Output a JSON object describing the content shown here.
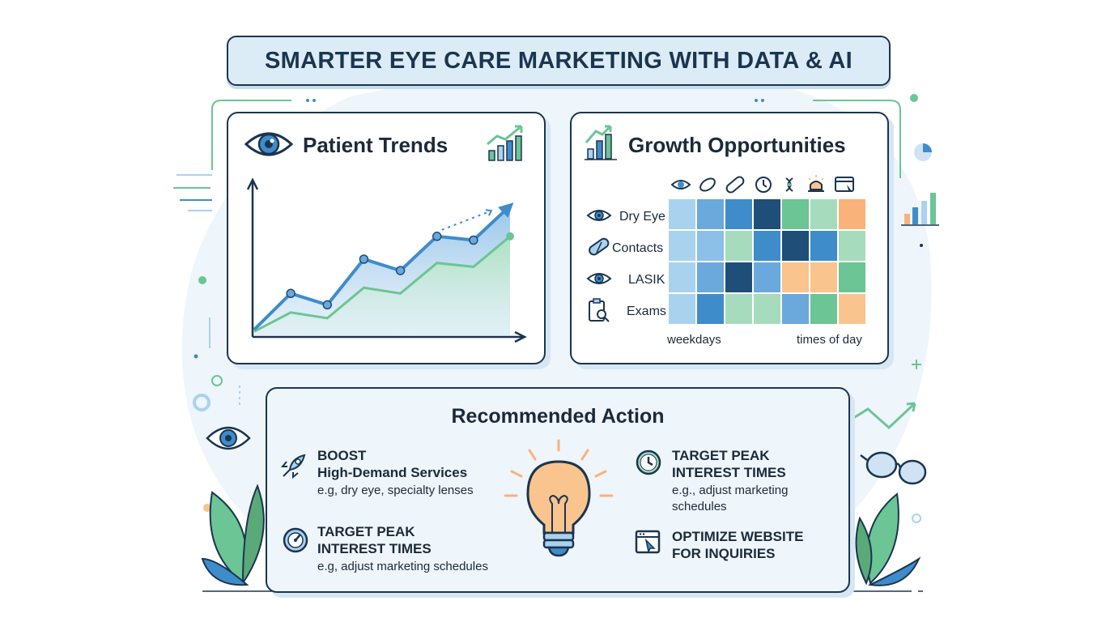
{
  "title": "SMARTER EYE CARE MARKETING WITH DATA & AI",
  "patient_trends": {
    "title": "Patient Trends",
    "icon": "eye-icon"
  },
  "growth": {
    "title": "Growth Opportunities",
    "column_icons": [
      "eye-icon",
      "contact-lens-icon",
      "bandage-icon",
      "clock-icon",
      "dna-icon",
      "lamp-icon",
      "browser-icon"
    ],
    "rows": [
      {
        "label": "Dry Eye",
        "icon": "eye-icon"
      },
      {
        "label": "Contacts",
        "icon": "contacts-icon"
      },
      {
        "label": "LASIK",
        "icon": "eye-icon"
      },
      {
        "label": "Exams",
        "icon": "clipboard-search-icon"
      }
    ],
    "x_label_left": "weekdays",
    "x_label_right": "times of day"
  },
  "recommended": {
    "title": "Recommended Action",
    "actions": [
      {
        "title_line1": "BOOST",
        "title_line2": "High-Demand Services",
        "desc_line1": "e.g, dry eye, specialty lenses",
        "desc_line2": "",
        "icon": "rocket-icon"
      },
      {
        "title_line1": "TARGET PEAK",
        "title_line2": "INTEREST TIMES",
        "desc_line1": "e.g, adjust marketing schedules",
        "desc_line2": "",
        "icon": "gauge-icon"
      },
      {
        "title_line1": "TARGET PEAK",
        "title_line2": "INTEREST TIMES",
        "desc_line1": "e.g., adjust marketing",
        "desc_line2": "schedules",
        "icon": "clock-icon"
      },
      {
        "title_line1": "OPTIMIZE WEBSITE",
        "title_line2": "FOR INQUIRIES",
        "desc_line1": "",
        "desc_line2": "",
        "icon": "browser-cursor-icon"
      }
    ]
  },
  "colors": {
    "navy": "#1b3550",
    "blue_dark": "#1f4e79",
    "blue_mid": "#3f8ccb",
    "blue_light": "#a9d2ef",
    "green": "#6cc594",
    "green_light": "#a6dcbd",
    "orange": "#f9c48e"
  },
  "chart_data": [
    {
      "type": "line",
      "title": "Patient Trends",
      "x": [
        1,
        2,
        3,
        4,
        5,
        6,
        7,
        8
      ],
      "series": [
        {
          "values": [
            3,
            22,
            16,
            40,
            34,
            52,
            50,
            68
          ]
        },
        {
          "values": [
            2,
            12,
            9,
            25,
            22,
            38,
            36,
            52
          ]
        }
      ],
      "ylim": [
        0,
        80
      ],
      "grid": false,
      "xlabel": "",
      "ylabel": ""
    },
    {
      "type": "heatmap",
      "title": "Growth Opportunities",
      "rows": [
        "Dry Eye",
        "Contacts",
        "LASIK",
        "Exams"
      ],
      "xlabel_left": "weekdays",
      "xlabel_right": "times of day",
      "cells": [
        [
          "#a9d2ef",
          "#6ba9dc",
          "#3f8ccb",
          "#1f4e79",
          "#6cc594",
          "#a6dcbd",
          "#f9b27a"
        ],
        [
          "#a9d2ef",
          "#8cc0e8",
          "#a6dcbd",
          "#3f8ccb",
          "#1f4e79",
          "#3f8ccb",
          "#a6dcbd"
        ],
        [
          "#a9d2ef",
          "#6ba9dc",
          "#1f4e79",
          "#6ba9dc",
          "#f9c48e",
          "#f9c48e",
          "#6cc594"
        ],
        [
          "#a9d2ef",
          "#3f8ccb",
          "#a6dcbd",
          "#a6dcbd",
          "#6ba9dc",
          "#6cc594",
          "#f9c48e"
        ]
      ]
    }
  ]
}
